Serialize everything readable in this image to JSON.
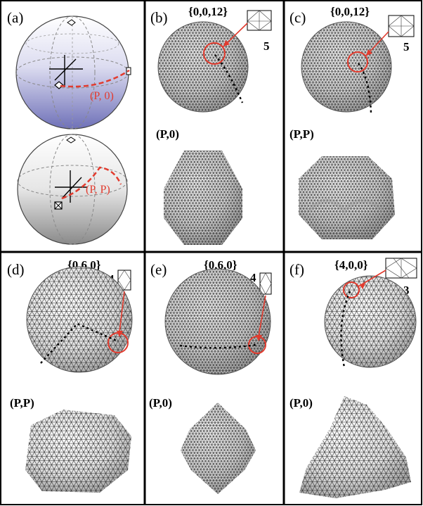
{
  "colors": {
    "frame": "#000000",
    "accent_red": "#e23b2e",
    "mesh_line": "#2a2a2a",
    "sphere_fill_light": "#ffffff",
    "sphere_fill_mid": "#e2e2e2",
    "sphere_fill_dark": "#a6a6a6",
    "sphere_blue_bottom": "#6f71b8"
  },
  "panels": [
    {
      "id": "a",
      "label": "(a)",
      "upper_path_label": "(P, 0)",
      "lower_path_label": "(P, P)"
    },
    {
      "id": "b",
      "label": "(b)",
      "index": "{0,0,12}",
      "valence": "5",
      "boundary": "(P,0)"
    },
    {
      "id": "c",
      "label": "(c)",
      "index": "{0,0,12}",
      "valence": "5",
      "boundary": "(P,P)"
    },
    {
      "id": "d",
      "label": "(d)",
      "index": "{0,6,0}",
      "valence": "4",
      "boundary": "(P,P)"
    },
    {
      "id": "e",
      "label": "(e)",
      "index": "{0,6,0}",
      "valence": "4",
      "boundary": "(P,0)"
    },
    {
      "id": "f",
      "label": "(f)",
      "index": "{4,0,0}",
      "valence": "3",
      "boundary": "(P,0)"
    }
  ],
  "icons": [
    "globe-icon",
    "triangulated-mesh-icon",
    "defect-inset-icon",
    "coordinate-axes-icon"
  ]
}
